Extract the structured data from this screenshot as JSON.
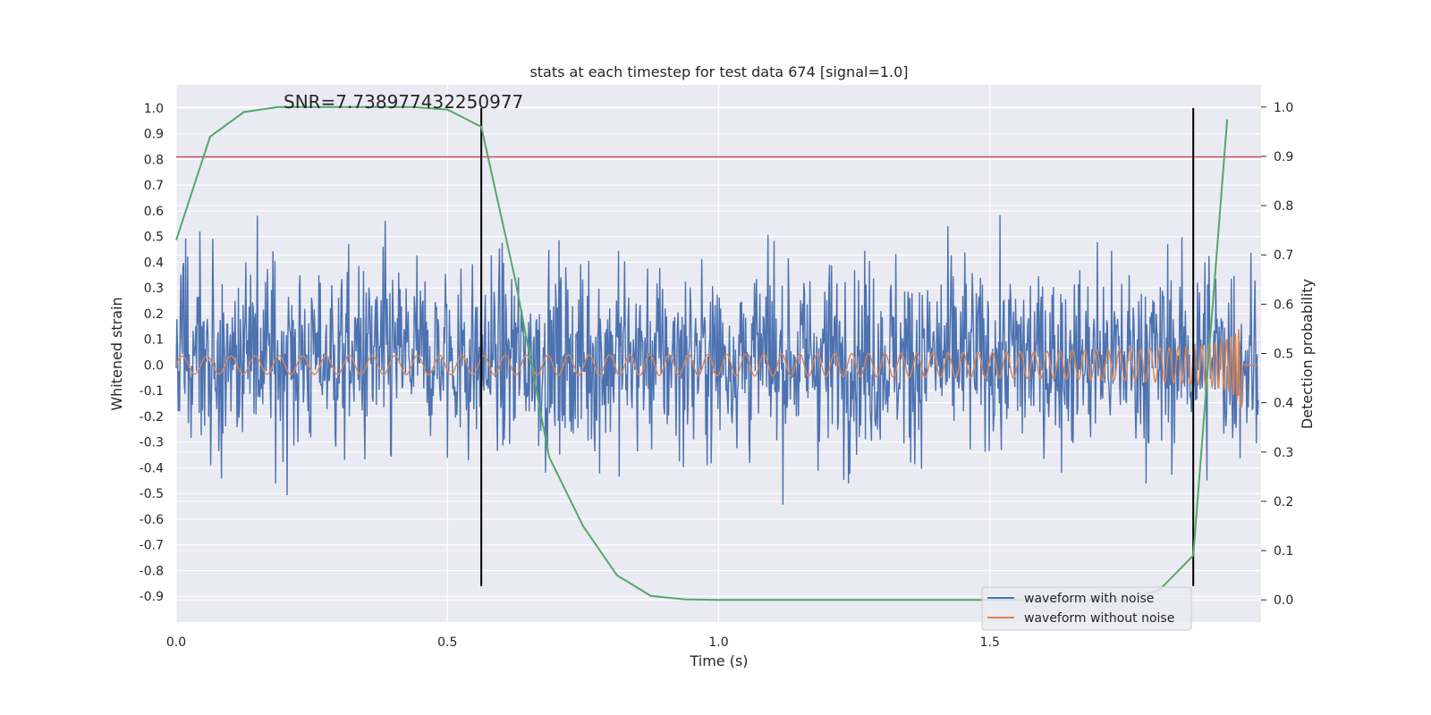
{
  "chart_data": {
    "type": "line",
    "title": "stats at each timestep for test data 674 [signal=1.0]",
    "annotation": "SNR=7.738977432250977",
    "xlabel": "Time (s)",
    "ylabel_left": "Whitened strain",
    "ylabel_right": "Detection probability",
    "xlim": [
      0.0,
      2.0
    ],
    "ylim_left": [
      -1.0,
      1.09
    ],
    "ylim_right": [
      -0.045,
      1.045
    ],
    "x_ticks": [
      "0.0",
      "0.5",
      "1.0",
      "1.5"
    ],
    "y_ticks_left": [
      "-0.9",
      "-0.8",
      "-0.7",
      "-0.6",
      "-0.5",
      "-0.4",
      "-0.3",
      "-0.2",
      "-0.1",
      "0.0",
      "0.1",
      "0.2",
      "0.3",
      "0.4",
      "0.5",
      "0.6",
      "0.7",
      "0.8",
      "0.9",
      "1.0"
    ],
    "y_ticks_right": [
      "0.0",
      "0.1",
      "0.2",
      "0.3",
      "0.4",
      "0.5",
      "0.6",
      "0.7",
      "0.8",
      "0.9",
      "1.0"
    ],
    "grid": true,
    "legend_position": "lower-right",
    "series": [
      {
        "name": "waveform with noise",
        "color": "#4c72b0",
        "axis": "left",
        "description": "whitened strain noise, roughly -0.86 to 1.0"
      },
      {
        "name": "waveform without noise",
        "color": "#dd8452",
        "axis": "left",
        "description": "chirp signal, amplitude ~0.03 growing to ~0.33 near t=1.96, ends near t=1.97"
      },
      {
        "color": "#55a868",
        "axis": "right",
        "x": [
          0.0,
          0.0625,
          0.125,
          0.1875,
          0.25,
          0.3125,
          0.375,
          0.4375,
          0.5,
          0.5625,
          0.625,
          0.6875,
          0.75,
          0.8125,
          0.875,
          0.9375,
          1.0,
          1.25,
          1.5,
          1.75,
          1.8125,
          1.875,
          1.9375
        ],
        "y": [
          0.73,
          0.94,
          0.99,
          1.0,
          1.0,
          1.0,
          1.0,
          1.0,
          0.995,
          0.96,
          0.65,
          0.29,
          0.15,
          0.05,
          0.008,
          0.001,
          0.0,
          0.0,
          0.0,
          0.0,
          0.02,
          0.09,
          0.975
        ]
      }
    ],
    "reference_lines": {
      "horizontal_left": {
        "y": 0.81,
        "color": "#c44e52"
      },
      "vertical": {
        "x": [
          0.5625,
          1.875
        ],
        "y_range_left": [
          -0.86,
          1.0
        ],
        "color": "#000000"
      }
    }
  },
  "legend": [
    {
      "label": "waveform with noise",
      "color": "#4c72b0"
    },
    {
      "label": "waveform without noise",
      "color": "#dd8452"
    }
  ]
}
